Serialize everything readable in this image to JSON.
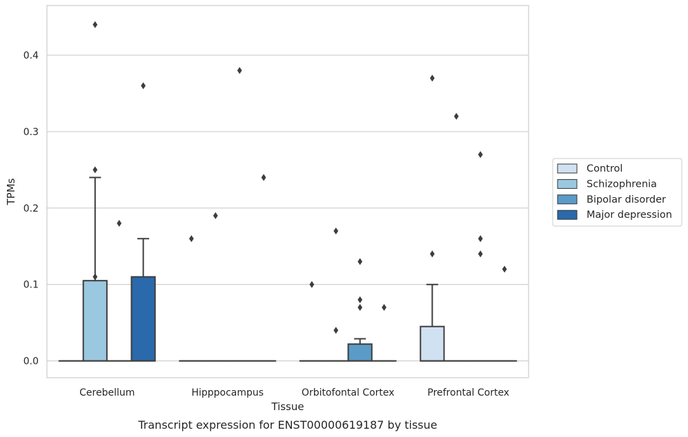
{
  "caption": "Transcript expression for ENST00000619187 by tissue",
  "chart_data": {
    "type": "box",
    "xlabel": "Tissue",
    "ylabel": "TPMs",
    "ylim": [
      -0.022,
      0.465
    ],
    "yticks": [
      "0.0",
      "0.1",
      "0.2",
      "0.3",
      "0.4"
    ],
    "ytick_values": [
      0.0,
      0.1,
      0.2,
      0.3,
      0.4
    ],
    "grid": true,
    "legend_position": "right",
    "categories": [
      "Cerebellum",
      "Hipppocampus",
      "Orbitofontal Cortex",
      "Prefrontal Cortex"
    ],
    "series": [
      {
        "name": "Control",
        "color": "#d0e1f2",
        "boxes": [
          {
            "q1": 0,
            "median": 0,
            "q3": 0,
            "whislo": 0,
            "whishi": 0,
            "fliers": []
          },
          {
            "q1": 0,
            "median": 0,
            "q3": 0,
            "whislo": 0,
            "whishi": 0,
            "fliers": [
              0.16
            ]
          },
          {
            "q1": 0,
            "median": 0,
            "q3": 0,
            "whislo": 0,
            "whishi": 0,
            "fliers": [
              0.1
            ]
          },
          {
            "q1": 0,
            "median": 0,
            "q3": 0.045,
            "whislo": 0,
            "whishi": 0.1,
            "fliers": [
              0.14,
              0.37
            ]
          }
        ]
      },
      {
        "name": "Schizophrenia",
        "color": "#9ac8e0",
        "boxes": [
          {
            "q1": 0,
            "median": 0,
            "q3": 0.105,
            "whislo": 0,
            "whishi": 0.24,
            "fliers": [
              0.11,
              0.25,
              0.44
            ]
          },
          {
            "q1": 0,
            "median": 0,
            "q3": 0,
            "whislo": 0,
            "whishi": 0,
            "fliers": [
              0.19
            ]
          },
          {
            "q1": 0,
            "median": 0,
            "q3": 0,
            "whislo": 0,
            "whishi": 0,
            "fliers": [
              0.04,
              0.17
            ]
          },
          {
            "q1": 0,
            "median": 0,
            "q3": 0,
            "whislo": 0,
            "whishi": 0,
            "fliers": [
              0.32
            ]
          }
        ]
      },
      {
        "name": "Bipolar disorder",
        "color": "#5a9bc8",
        "boxes": [
          {
            "q1": 0,
            "median": 0,
            "q3": 0,
            "whislo": 0,
            "whishi": 0,
            "fliers": [
              0.18
            ]
          },
          {
            "q1": 0,
            "median": 0,
            "q3": 0,
            "whislo": 0,
            "whishi": 0,
            "fliers": [
              0.38
            ]
          },
          {
            "q1": 0,
            "median": 0,
            "q3": 0.022,
            "whislo": 0,
            "whishi": 0.029,
            "fliers": [
              0.07,
              0.08,
              0.13
            ]
          },
          {
            "q1": 0,
            "median": 0,
            "q3": 0,
            "whislo": 0,
            "whishi": 0,
            "fliers": [
              0.14,
              0.16,
              0.27
            ]
          }
        ]
      },
      {
        "name": "Major depression",
        "color": "#2a69ab",
        "boxes": [
          {
            "q1": 0,
            "median": 0,
            "q3": 0.11,
            "whislo": 0,
            "whishi": 0.16,
            "fliers": [
              0.36
            ]
          },
          {
            "q1": 0,
            "median": 0,
            "q3": 0,
            "whislo": 0,
            "whishi": 0,
            "fliers": [
              0.24
            ]
          },
          {
            "q1": 0,
            "median": 0,
            "q3": 0,
            "whislo": 0,
            "whishi": 0,
            "fliers": [
              0.07
            ]
          },
          {
            "q1": 0,
            "median": 0,
            "q3": 0,
            "whislo": 0,
            "whishi": 0,
            "fliers": [
              0.12
            ]
          }
        ]
      }
    ]
  }
}
